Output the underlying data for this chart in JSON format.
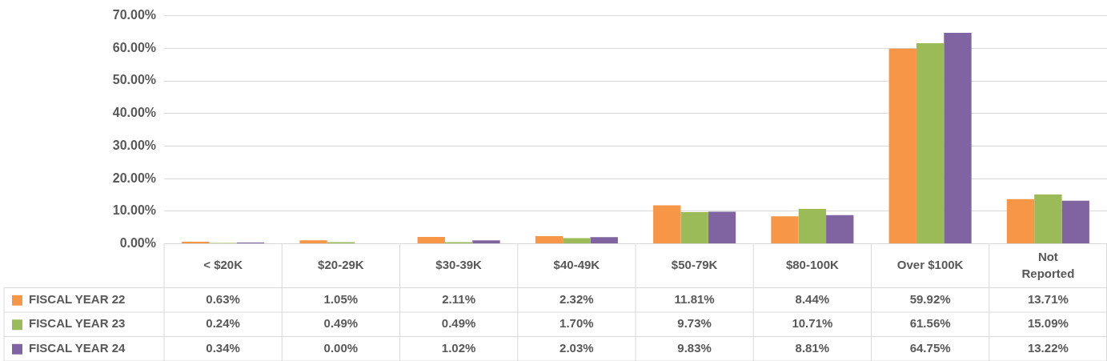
{
  "chart_data": {
    "type": "bar",
    "categories": [
      "< $20K",
      "$20-29K",
      "$30-39K",
      "$40-49K",
      "$50-79K",
      "$80-100K",
      "Over $100K",
      "Not Reported"
    ],
    "series": [
      {
        "name": "FISCAL YEAR 22",
        "color": "#f79646",
        "values": [
          0.63,
          1.05,
          2.11,
          2.32,
          11.81,
          8.44,
          59.92,
          13.71
        ],
        "value_labels": [
          "0.63%",
          "1.05%",
          "2.11%",
          "2.32%",
          "11.81%",
          "8.44%",
          "59.92%",
          "13.71%"
        ]
      },
      {
        "name": "FISCAL YEAR 23",
        "color": "#9bbb59",
        "values": [
          0.24,
          0.49,
          0.49,
          1.7,
          9.73,
          10.71,
          61.56,
          15.09
        ],
        "value_labels": [
          "0.24%",
          "0.49%",
          "0.49%",
          "1.70%",
          "9.73%",
          "10.71%",
          "61.56%",
          "15.09%"
        ]
      },
      {
        "name": "FISCAL YEAR 24",
        "color": "#8064a2",
        "values": [
          0.34,
          0,
          1.02,
          2.03,
          9.83,
          8.81,
          64.75,
          13.22
        ],
        "value_labels": [
          "0.34%",
          "0.00%",
          "1.02%",
          "2.03%",
          "9.83%",
          "8.81%",
          "64.75%",
          "13.22%"
        ]
      }
    ],
    "ylim": [
      0,
      70
    ],
    "yticks": [
      {
        "value": 0,
        "label": "0.00%"
      },
      {
        "value": 10,
        "label": "10.00%"
      },
      {
        "value": 20,
        "label": "20.00%"
      },
      {
        "value": 30,
        "label": "30.00%"
      },
      {
        "value": 40,
        "label": "40.00%"
      },
      {
        "value": 50,
        "label": "50.00%"
      },
      {
        "value": 60,
        "label": "60.00%"
      },
      {
        "value": 70,
        "label": "70.00%"
      }
    ],
    "grid": "y",
    "legend": "bottom left"
  }
}
